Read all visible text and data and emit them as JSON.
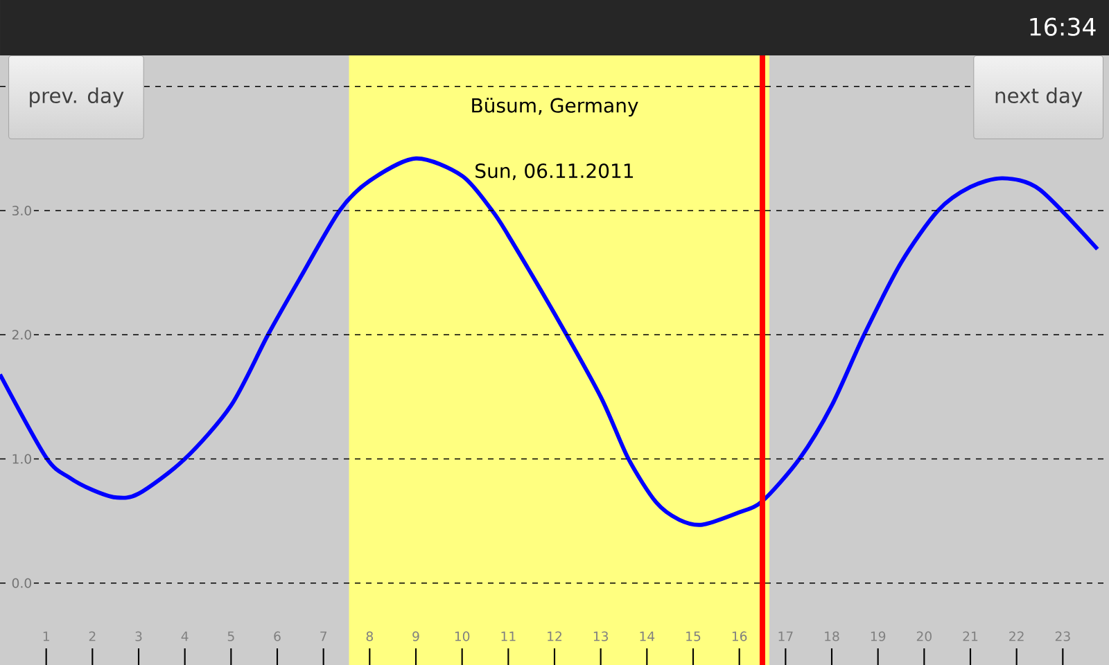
{
  "chart_data": {
    "type": "line",
    "title": "Büsum, Germany",
    "subtitle": "Sun, 06.11.2011",
    "annotations": [
      "prev. day",
      "next day",
      "16:34"
    ],
    "x": [
      0,
      1,
      1.5,
      2,
      2.5,
      3,
      4,
      5,
      5.8,
      6.5,
      7.35,
      8,
      9,
      10,
      10.65,
      11,
      12,
      13,
      13.6,
      14.2,
      14.7,
      15.2,
      16,
      16.5,
      17.3,
      18,
      18.7,
      19.5,
      20.3,
      21,
      21.7,
      22.5,
      23.75
    ],
    "series": [
      {
        "color": "#0000ff",
        "values": [
          1.68,
          1.01,
          0.85,
          0.75,
          0.69,
          0.72,
          1.0,
          1.43,
          2.0,
          2.46,
          3.0,
          3.24,
          3.42,
          3.28,
          3.0,
          2.8,
          2.17,
          1.5,
          1.0,
          0.65,
          0.51,
          0.47,
          0.57,
          0.66,
          1.0,
          1.43,
          2.0,
          2.58,
          3.0,
          3.19,
          3.26,
          3.17,
          2.69
        ]
      }
    ],
    "xlim": [
      0,
      24
    ],
    "ylim": [
      -0.66,
      4.25
    ],
    "xticks": [
      1,
      2,
      3,
      4,
      5,
      6,
      7,
      8,
      9,
      10,
      11,
      12,
      13,
      14,
      15,
      16,
      17,
      18,
      19,
      20,
      21,
      22,
      23
    ],
    "yticks": [
      {
        "value": 0,
        "label": "0.0"
      },
      {
        "value": 1,
        "label": "1.0"
      },
      {
        "value": 2,
        "label": "2.0"
      },
      {
        "value": 3,
        "label": "3.0"
      },
      {
        "value": 4,
        "label": null
      }
    ],
    "grid": "y",
    "marker": "none",
    "line_style": "solid",
    "bands": [
      {
        "axis": "x",
        "from": 7.55,
        "to": 16.65,
        "color": "#ffff80"
      }
    ],
    "ref_lines": [
      {
        "axis": "x",
        "value": 16.5,
        "color": "#ff0000"
      }
    ]
  }
}
